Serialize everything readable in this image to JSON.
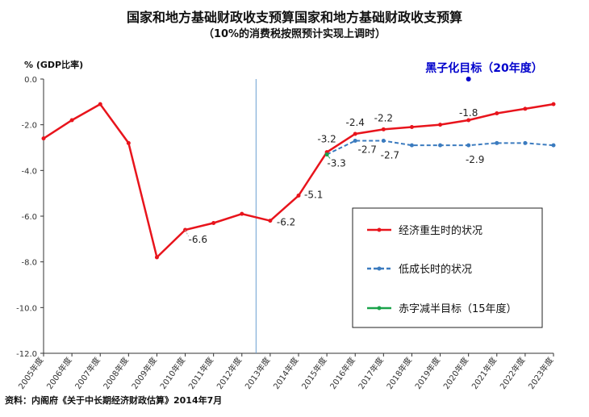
{
  "title": "国家和地方基础财政收支预算国家和地方基础财政收支预算",
  "subtitle": "（10%的消费税按照预计实现上调时）",
  "source": "资料：内阁府《关于中长期经济财政估算》2014年7月",
  "colors": {
    "red": "#e8141c",
    "blue": "#3b7bbf",
    "green": "#1aa34a",
    "target": "#0000cc",
    "axis": "#333333",
    "divider": "#6a9fd0"
  },
  "chart_data": {
    "type": "line",
    "ylabel": "% (GDP比率)",
    "ylim": [
      -12.0,
      0.0
    ],
    "yticks": [
      "0.0",
      "-2.0",
      "-4.0",
      "-6.0",
      "-8.0",
      "-10.0",
      "-12.0"
    ],
    "categories": [
      "2005年度",
      "2006年度",
      "2007年度",
      "2008年度",
      "2009年度",
      "2010年度",
      "2011年度",
      "2012年度",
      "2013年度",
      "2014年度",
      "2015年度",
      "2016年度",
      "2017年度",
      "2018年度",
      "2019年度",
      "2020年度",
      "2021年度",
      "2022年度",
      "2023年度"
    ],
    "divider_after": "2012年度",
    "target_label": "黑子化目标（20年度）",
    "target_point": {
      "x": "2020年度",
      "y": 0.0
    },
    "series": [
      {
        "name": "经济重生时的状况",
        "color": "#e8141c",
        "dashed": false,
        "x": [
          "2005年度",
          "2006年度",
          "2007年度",
          "2008年度",
          "2009年度",
          "2010年度",
          "2011年度",
          "2012年度",
          "2013年度",
          "2014年度",
          "2015年度",
          "2016年度",
          "2017年度",
          "2018年度",
          "2019年度",
          "2020年度",
          "2021年度",
          "2022年度",
          "2023年度"
        ],
        "values": [
          -2.6,
          -1.8,
          -1.1,
          -2.8,
          -7.8,
          -6.6,
          -6.3,
          -5.9,
          -6.2,
          -5.1,
          -3.2,
          -2.4,
          -2.2,
          -2.1,
          -2.0,
          -1.8,
          -1.5,
          -1.3,
          -1.1
        ]
      },
      {
        "name": "低成长时的状况",
        "color": "#3b7bbf",
        "dashed": true,
        "x": [
          "2015年度",
          "2016年度",
          "2017年度",
          "2018年度",
          "2019年度",
          "2020年度",
          "2021年度",
          "2022年度",
          "2023年度"
        ],
        "values": [
          -3.3,
          -2.7,
          -2.7,
          -2.9,
          -2.9,
          -2.9,
          -2.8,
          -2.8,
          -2.9
        ]
      },
      {
        "name": "赤字减半目标（15年度）",
        "color": "#1aa34a",
        "dashed": false,
        "x": [
          "2015年度"
        ],
        "values": [
          -3.3
        ]
      }
    ],
    "data_labels": [
      {
        "series": 0,
        "x": "2010年度",
        "text": "-6.6"
      },
      {
        "series": 0,
        "x": "2013年度",
        "text": "-6.2"
      },
      {
        "series": 0,
        "x": "2014年度",
        "text": "-5.1"
      },
      {
        "series": 0,
        "x": "2015年度",
        "text": "-3.2"
      },
      {
        "series": 0,
        "x": "2016年度",
        "text": "-2.4"
      },
      {
        "series": 0,
        "x": "2017年度",
        "text": "-2.2"
      },
      {
        "series": 0,
        "x": "2020年度",
        "text": "-1.8"
      },
      {
        "series": 1,
        "x": "2015年度",
        "text": "-3.3"
      },
      {
        "series": 1,
        "x": "2016年度",
        "text": "-2.7"
      },
      {
        "series": 1,
        "x": "2017年度",
        "text": "-2.7"
      },
      {
        "series": 1,
        "x": "2020年度",
        "text": "-2.9"
      }
    ],
    "legend": [
      "经济重生时的状况",
      "低成长时的状况",
      "赤字减半目标（15年度）"
    ],
    "legend_position": "bottom-right",
    "grid": false
  }
}
